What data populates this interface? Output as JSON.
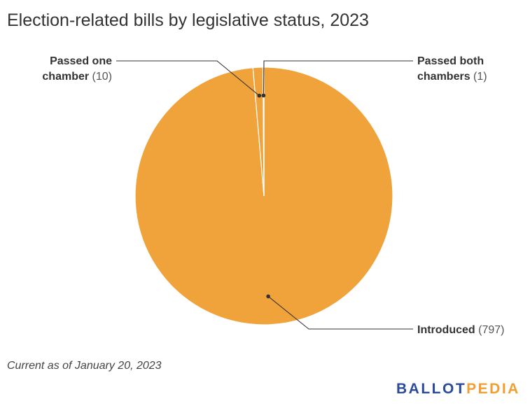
{
  "title": "Election-related bills by legislative status, 2023",
  "footnote": "Current as of January 20, 2023",
  "logo": {
    "part1": "BALLOT",
    "part2": "PEDIA",
    "color1": "#2b4a9c",
    "color2": "#f0a033"
  },
  "chart_data": {
    "type": "pie",
    "title": "Election-related bills by legislative status, 2023",
    "start_angle_deg": 0,
    "direction": "clockwise",
    "slices": [
      {
        "label": "Introduced",
        "label_lines": [
          "Introduced"
        ],
        "value": 797,
        "value_text": "(797)",
        "color": "#f0a33a"
      },
      {
        "label": "Passed one chamber",
        "label_lines": [
          "Passed one",
          "chamber"
        ],
        "value": 10,
        "value_text": "(10)",
        "color": "#f0a33a"
      },
      {
        "label": "Passed both chambers",
        "label_lines": [
          "Passed both",
          "chambers"
        ],
        "value": 1,
        "value_text": "(1)",
        "color": "#7a3a09"
      }
    ],
    "slice_colors_note": "",
    "legend": "none (direct labels)"
  }
}
